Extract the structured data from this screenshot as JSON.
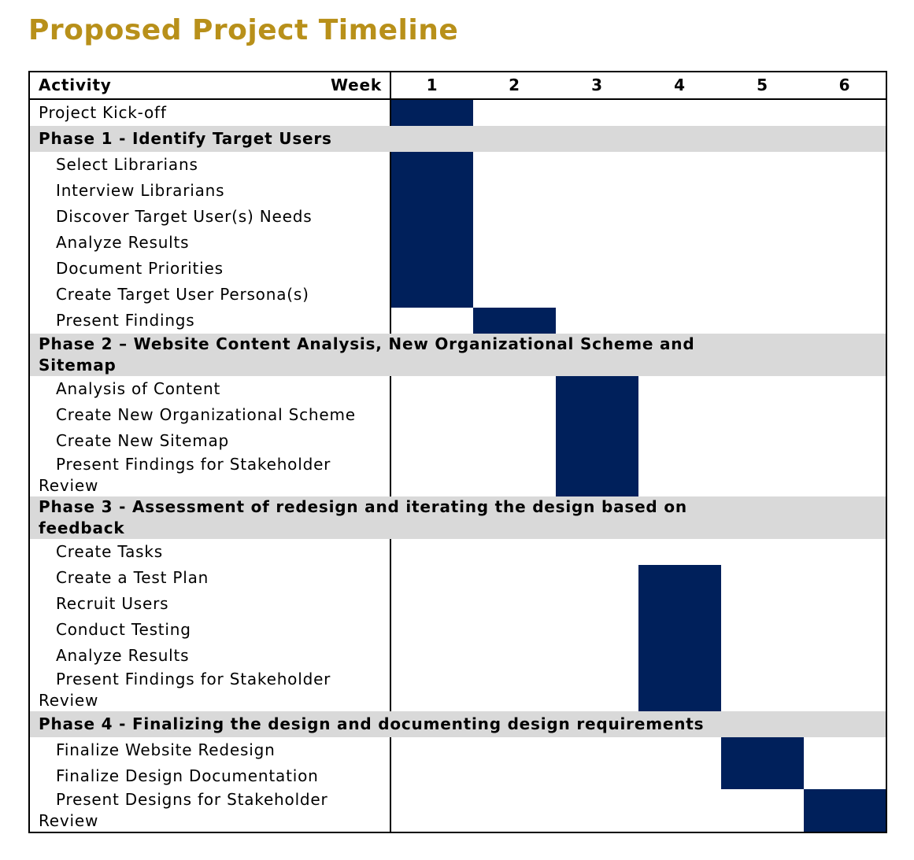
{
  "title": "Proposed Project Timeline",
  "header": {
    "activity": "Activity",
    "week": "Week",
    "weeks": [
      "1",
      "2",
      "3",
      "4",
      "5",
      "6"
    ]
  },
  "rows": [
    {
      "kind": "task",
      "label": "Project Kick-off",
      "indent": false,
      "shaded": [
        true,
        false,
        false,
        false,
        false,
        false
      ]
    },
    {
      "kind": "phase",
      "label": "Phase 1 - Identify Target Users"
    },
    {
      "kind": "task",
      "label": "Select Librarians",
      "indent": true,
      "shaded": [
        true,
        false,
        false,
        false,
        false,
        false
      ]
    },
    {
      "kind": "task",
      "label": "Interview Librarians",
      "indent": true,
      "shaded": [
        true,
        false,
        false,
        false,
        false,
        false
      ]
    },
    {
      "kind": "task",
      "label": "Discover Target User(s) Needs",
      "indent": true,
      "shaded": [
        true,
        false,
        false,
        false,
        false,
        false
      ]
    },
    {
      "kind": "task",
      "label": "Analyze Results",
      "indent": true,
      "shaded": [
        true,
        false,
        false,
        false,
        false,
        false
      ]
    },
    {
      "kind": "task",
      "label": "Document Priorities",
      "indent": true,
      "shaded": [
        true,
        false,
        false,
        false,
        false,
        false
      ]
    },
    {
      "kind": "task",
      "label": "Create Target User Persona(s)",
      "indent": true,
      "shaded": [
        true,
        false,
        false,
        false,
        false,
        false
      ]
    },
    {
      "kind": "task",
      "label": "Present Findings",
      "indent": true,
      "shaded": [
        false,
        true,
        false,
        false,
        false,
        false
      ]
    },
    {
      "kind": "phase",
      "label": "Phase 2 – Website Content Analysis, New Organizational Scheme and Sitemap"
    },
    {
      "kind": "task",
      "label": "Analysis of Content",
      "indent": true,
      "shaded": [
        false,
        false,
        true,
        false,
        false,
        false
      ]
    },
    {
      "kind": "task",
      "label": "Create New Organizational Scheme",
      "indent": true,
      "shaded": [
        false,
        false,
        true,
        false,
        false,
        false
      ]
    },
    {
      "kind": "task",
      "label": "Create New Sitemap",
      "indent": true,
      "shaded": [
        false,
        false,
        true,
        false,
        false,
        false
      ]
    },
    {
      "kind": "task",
      "label": "Present Findings for Stakeholder Review",
      "indent": true,
      "shaded": [
        false,
        false,
        true,
        false,
        false,
        false
      ]
    },
    {
      "kind": "phase",
      "label": "Phase 3 - Assessment of redesign and iterating the design based on feedback"
    },
    {
      "kind": "task",
      "label": "Create Tasks",
      "indent": true,
      "shaded": [
        false,
        false,
        false,
        false,
        false,
        false
      ]
    },
    {
      "kind": "task",
      "label": "Create a Test Plan",
      "indent": true,
      "shaded": [
        false,
        false,
        false,
        true,
        false,
        false
      ]
    },
    {
      "kind": "task",
      "label": "Recruit Users",
      "indent": true,
      "shaded": [
        false,
        false,
        false,
        true,
        false,
        false
      ]
    },
    {
      "kind": "task",
      "label": "Conduct Testing",
      "indent": true,
      "shaded": [
        false,
        false,
        false,
        true,
        false,
        false
      ]
    },
    {
      "kind": "task",
      "label": "Analyze Results",
      "indent": true,
      "shaded": [
        false,
        false,
        false,
        true,
        false,
        false
      ]
    },
    {
      "kind": "task",
      "label": "Present Findings for Stakeholder Review",
      "indent": true,
      "shaded": [
        false,
        false,
        false,
        true,
        false,
        false
      ]
    },
    {
      "kind": "phase",
      "label": "Phase 4 - Finalizing the design and documenting design requirements"
    },
    {
      "kind": "task",
      "label": "Finalize Website Redesign",
      "indent": true,
      "shaded": [
        false,
        false,
        false,
        false,
        true,
        false
      ]
    },
    {
      "kind": "task",
      "label": "Finalize Design Documentation",
      "indent": true,
      "shaded": [
        false,
        false,
        false,
        false,
        true,
        false
      ]
    },
    {
      "kind": "task",
      "label": "Present Designs for Stakeholder Review",
      "indent": true,
      "shaded": [
        false,
        false,
        false,
        false,
        false,
        true
      ]
    }
  ]
}
